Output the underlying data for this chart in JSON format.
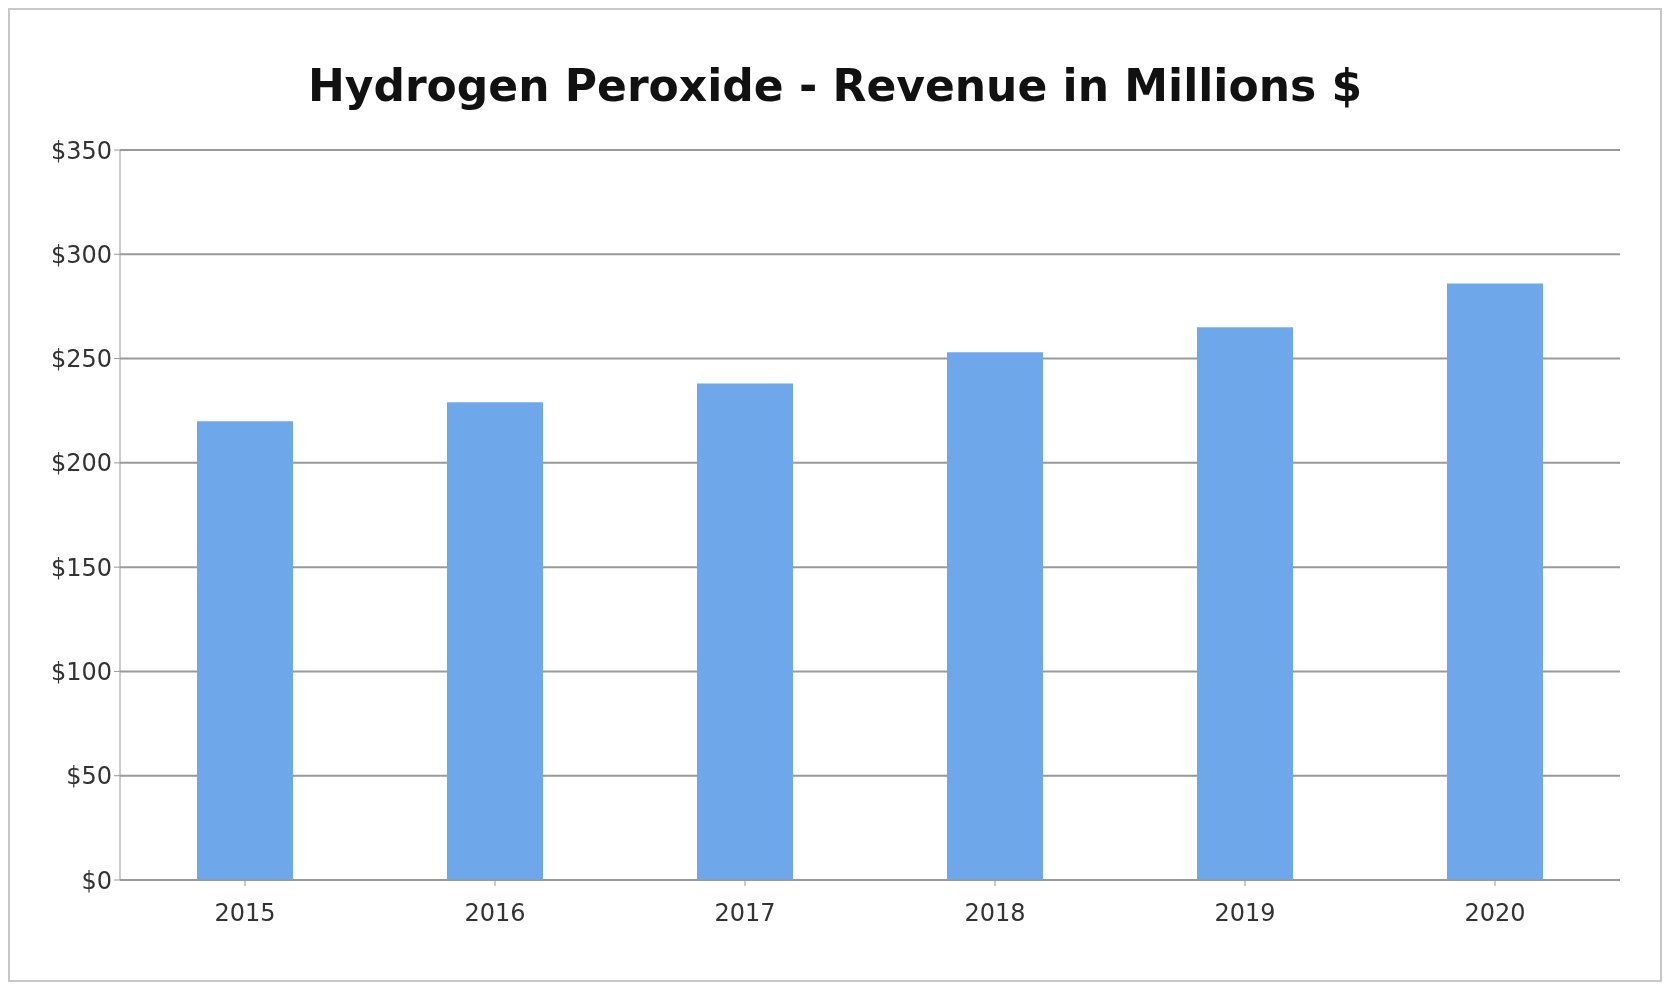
{
  "chart_data": {
    "type": "bar",
    "title": "Hydrogen Peroxide - Revenue in Millions $",
    "categories": [
      "2015",
      "2016",
      "2017",
      "2018",
      "2019",
      "2020"
    ],
    "values": [
      220,
      229,
      238,
      253,
      265,
      286
    ],
    "color": "#6fa8ea",
    "ylim": [
      0,
      350
    ],
    "yticks": [
      {
        "value": 0,
        "label": "$0"
      },
      {
        "value": 50,
        "label": "$50"
      },
      {
        "value": 100,
        "label": "$100"
      },
      {
        "value": 150,
        "label": "$150"
      },
      {
        "value": 200,
        "label": "$200"
      },
      {
        "value": 250,
        "label": "$250"
      },
      {
        "value": 300,
        "label": "$300"
      },
      {
        "value": 350,
        "label": "$350"
      }
    ],
    "grid": "y"
  }
}
